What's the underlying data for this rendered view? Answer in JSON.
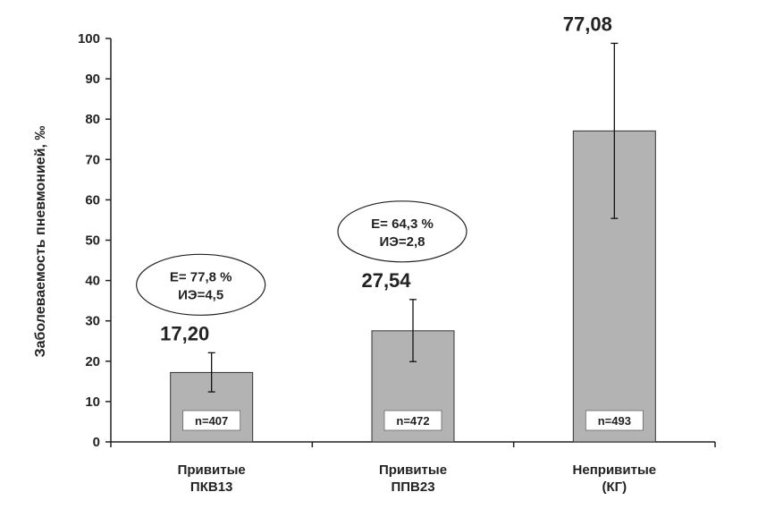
{
  "chart_data": {
    "type": "bar",
    "ylabel": "Заболеваемость пневмонией, ‰",
    "xlabel": "",
    "ylim": [
      0,
      100
    ],
    "yticks": [
      0,
      10,
      20,
      30,
      40,
      50,
      60,
      70,
      80,
      90,
      100
    ],
    "grid": false,
    "categories": [
      [
        "Привитые",
        "ПКВ13"
      ],
      [
        "Привитые",
        "ППВ23"
      ],
      [
        "Непривитые",
        "(КГ)"
      ]
    ],
    "values": [
      17.2,
      27.54,
      77.08
    ],
    "value_labels": [
      "17,20",
      "27,54",
      "77,08"
    ],
    "error_low": [
      12.4,
      19.9,
      55.4
    ],
    "error_high": [
      22.1,
      35.3,
      98.8
    ],
    "n_labels": [
      "n=407",
      "n=472",
      "n=493"
    ],
    "annotations": [
      {
        "bar": 0,
        "lines": [
          "E= 77,8 %",
          "ИЭ=4,5"
        ]
      },
      {
        "bar": 1,
        "lines": [
          "E= 64,3 %",
          "ИЭ=2,8"
        ]
      }
    ],
    "colors": {
      "bar": "#b3b3b3",
      "bar_stroke": "#333333",
      "axis": "#222222"
    }
  }
}
